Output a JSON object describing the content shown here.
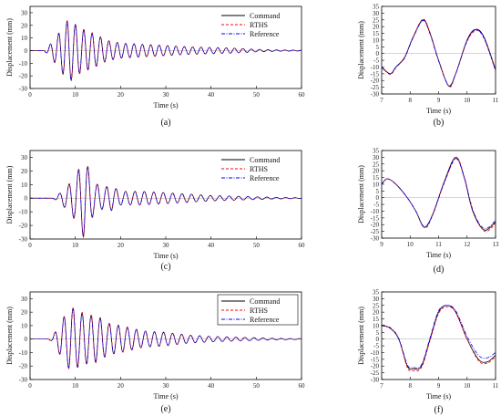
{
  "chart_data": [
    {
      "id": "a",
      "type": "line",
      "panel_label": "(a)",
      "xlabel": "Time (s)",
      "ylabel": "Displacement (mm)",
      "xlim": [
        0,
        60
      ],
      "ylim": [
        -30,
        35
      ],
      "xticks": [
        0,
        10,
        20,
        30,
        40,
        50,
        60
      ],
      "yticks": [
        -30,
        -20,
        -10,
        0,
        10,
        20,
        30
      ],
      "legend": {
        "placement": "top-right"
      },
      "wave": {
        "onset": 4.0,
        "freq": 0.54,
        "envelope": [
          [
            3,
            0
          ],
          [
            4,
            3
          ],
          [
            6,
            12
          ],
          [
            8.5,
            25
          ],
          [
            11,
            18
          ],
          [
            13,
            15
          ],
          [
            15,
            12
          ],
          [
            17,
            8
          ],
          [
            20,
            6
          ],
          [
            25,
            5
          ],
          [
            30,
            4
          ],
          [
            35,
            3
          ],
          [
            40,
            2.5
          ],
          [
            45,
            2
          ],
          [
            50,
            1
          ],
          [
            55,
            0.5
          ],
          [
            60,
            0.3
          ]
        ]
      },
      "series": [
        {
          "name": "Command",
          "color": "#000000",
          "style": "solid",
          "scale": 1.0,
          "lag": 0.0
        },
        {
          "name": "RTHS",
          "color": "#ff0000",
          "style": "dash",
          "scale": 1.02,
          "lag": 0.03
        },
        {
          "name": "Reference",
          "color": "#0000ff",
          "style": "dashdot",
          "scale": 0.97,
          "lag": -0.02
        }
      ]
    },
    {
      "id": "b",
      "type": "line",
      "panel_label": "(b)",
      "xlabel": "Time (s)",
      "ylabel": "Displacement (mm)",
      "xlim": [
        7,
        11
      ],
      "ylim": [
        -30,
        35
      ],
      "xticks": [
        7,
        8,
        9,
        10,
        11
      ],
      "yticks": [
        -30,
        -25,
        -20,
        -15,
        -10,
        -5,
        0,
        5,
        10,
        15,
        20,
        25,
        30,
        35
      ],
      "series": [
        {
          "name": "Command",
          "color": "#000000",
          "style": "solid",
          "points": [
            [
              7,
              -10
            ],
            [
              7.3,
              -15
            ],
            [
              7.5,
              -10
            ],
            [
              7.8,
              -3
            ],
            [
              8.1,
              12
            ],
            [
              8.45,
              25
            ],
            [
              8.7,
              15
            ],
            [
              9.0,
              -5
            ],
            [
              9.35,
              -24
            ],
            [
              9.6,
              -15
            ],
            [
              10.0,
              10
            ],
            [
              10.3,
              18
            ],
            [
              10.6,
              12
            ],
            [
              11,
              -12
            ]
          ]
        },
        {
          "name": "RTHS",
          "color": "#ff0000",
          "style": "dash",
          "points": [
            [
              7,
              -10
            ],
            [
              7.3,
              -15.5
            ],
            [
              7.5,
              -10.5
            ],
            [
              7.8,
              -3
            ],
            [
              8.1,
              12
            ],
            [
              8.45,
              25.5
            ],
            [
              8.7,
              15.5
            ],
            [
              9.0,
              -5
            ],
            [
              9.37,
              -24.5
            ],
            [
              9.6,
              -15
            ],
            [
              10.0,
              9
            ],
            [
              10.32,
              17
            ],
            [
              10.6,
              11
            ],
            [
              11,
              -13
            ]
          ]
        },
        {
          "name": "Reference",
          "color": "#0000ff",
          "style": "dashdot",
          "points": [
            [
              7,
              -10.5
            ],
            [
              7.3,
              -15
            ],
            [
              7.5,
              -10
            ],
            [
              7.8,
              -3.5
            ],
            [
              8.1,
              11.5
            ],
            [
              8.45,
              24.5
            ],
            [
              8.7,
              14.5
            ],
            [
              9.0,
              -5.5
            ],
            [
              9.35,
              -23.5
            ],
            [
              9.6,
              -15
            ],
            [
              10.0,
              9.5
            ],
            [
              10.3,
              17.5
            ],
            [
              10.6,
              11.5
            ],
            [
              11,
              -12.5
            ]
          ]
        }
      ]
    },
    {
      "id": "c",
      "type": "line",
      "panel_label": "(c)",
      "xlabel": "Time (s)",
      "ylabel": "Displacement (mm)",
      "xlim": [
        0,
        60
      ],
      "ylim": [
        -30,
        35
      ],
      "xticks": [
        0,
        10,
        20,
        30,
        40,
        50,
        60
      ],
      "yticks": [
        -30,
        -20,
        -10,
        0,
        10,
        20,
        30
      ],
      "legend": {
        "placement": "top-right"
      },
      "wave": {
        "onset": 6.0,
        "freq": 0.48,
        "envelope": [
          [
            5,
            0
          ],
          [
            6,
            2
          ],
          [
            8,
            8
          ],
          [
            10,
            16
          ],
          [
            12,
            30
          ],
          [
            14,
            12
          ],
          [
            16,
            8
          ],
          [
            18,
            9
          ],
          [
            20,
            5
          ],
          [
            25,
            5
          ],
          [
            30,
            4
          ],
          [
            35,
            3
          ],
          [
            40,
            2
          ],
          [
            45,
            1.5
          ],
          [
            50,
            1
          ],
          [
            55,
            0.5
          ],
          [
            60,
            0.3
          ]
        ]
      },
      "series": [
        {
          "name": "Command",
          "color": "#000000",
          "style": "solid",
          "scale": 1.0,
          "lag": 0.0
        },
        {
          "name": "RTHS",
          "color": "#ff0000",
          "style": "dash",
          "scale": 1.02,
          "lag": 0.03
        },
        {
          "name": "Reference",
          "color": "#0000ff",
          "style": "dashdot",
          "scale": 0.97,
          "lag": -0.02
        }
      ]
    },
    {
      "id": "d",
      "type": "line",
      "panel_label": "(d)",
      "xlabel": "Time (s)",
      "ylabel": "Displacement (mm)",
      "xlim": [
        9,
        13
      ],
      "ylim": [
        -30,
        35
      ],
      "xticks": [
        9,
        10,
        11,
        12,
        13
      ],
      "yticks": [
        -30,
        -25,
        -20,
        -15,
        -10,
        -5,
        0,
        5,
        10,
        15,
        20,
        25,
        30,
        35
      ],
      "series": [
        {
          "name": "Command",
          "color": "#000000",
          "style": "solid",
          "points": [
            [
              9,
              10
            ],
            [
              9.2,
              14
            ],
            [
              9.5,
              10
            ],
            [
              9.9,
              0
            ],
            [
              10.2,
              -10
            ],
            [
              10.5,
              -22
            ],
            [
              10.8,
              -12
            ],
            [
              11.2,
              12
            ],
            [
              11.6,
              30
            ],
            [
              11.9,
              15
            ],
            [
              12.2,
              -10
            ],
            [
              12.6,
              -24
            ],
            [
              13,
              -18
            ]
          ]
        },
        {
          "name": "RTHS",
          "color": "#ff0000",
          "style": "dash",
          "points": [
            [
              9,
              10
            ],
            [
              9.2,
              14
            ],
            [
              9.5,
              10
            ],
            [
              9.9,
              0
            ],
            [
              10.2,
              -10
            ],
            [
              10.52,
              -22.5
            ],
            [
              10.8,
              -12.5
            ],
            [
              11.2,
              11
            ],
            [
              11.62,
              29.5
            ],
            [
              11.9,
              15.5
            ],
            [
              12.22,
              -10
            ],
            [
              12.62,
              -25
            ],
            [
              13,
              -19
            ]
          ]
        },
        {
          "name": "Reference",
          "color": "#0000ff",
          "style": "dashdot",
          "points": [
            [
              9,
              10
            ],
            [
              9.2,
              14
            ],
            [
              9.5,
              10
            ],
            [
              9.9,
              0
            ],
            [
              10.2,
              -10
            ],
            [
              10.5,
              -21.5
            ],
            [
              10.8,
              -12
            ],
            [
              11.2,
              11.5
            ],
            [
              11.6,
              29
            ],
            [
              11.9,
              15
            ],
            [
              12.2,
              -9.5
            ],
            [
              12.6,
              -23
            ],
            [
              13,
              -17
            ]
          ]
        }
      ]
    },
    {
      "id": "e",
      "type": "line",
      "panel_label": "(e)",
      "xlabel": "Time (s)",
      "ylabel": "Displacement (mm)",
      "xlim": [
        0,
        60
      ],
      "ylim": [
        -30,
        35
      ],
      "xticks": [
        0,
        10,
        20,
        30,
        40,
        50,
        60
      ],
      "yticks": [
        -30,
        -20,
        -10,
        0,
        10,
        20,
        30
      ],
      "legend": {
        "placement": "top-right"
      },
      "wave": {
        "onset": 5.0,
        "freq": 0.5,
        "envelope": [
          [
            4,
            0
          ],
          [
            5,
            2
          ],
          [
            7,
            14
          ],
          [
            9,
            24
          ],
          [
            11,
            20
          ],
          [
            13,
            18
          ],
          [
            15,
            17
          ],
          [
            17,
            12
          ],
          [
            20,
            10
          ],
          [
            25,
            6
          ],
          [
            30,
            5
          ],
          [
            35,
            3
          ],
          [
            40,
            2
          ],
          [
            45,
            1.5
          ],
          [
            50,
            1
          ],
          [
            55,
            0.5
          ],
          [
            60,
            0.3
          ]
        ]
      },
      "series": [
        {
          "name": "Command",
          "color": "#000000",
          "style": "solid",
          "scale": 1.0,
          "lag": 0.0
        },
        {
          "name": "RTHS",
          "color": "#ff0000",
          "style": "dash",
          "scale": 1.02,
          "lag": 0.03
        },
        {
          "name": "Reference",
          "color": "#0000ff",
          "style": "dashdot",
          "scale": 0.97,
          "lag": -0.02
        }
      ]
    },
    {
      "id": "f",
      "type": "line",
      "panel_label": "(f)",
      "xlabel": "Time (s)",
      "ylabel": "Displacement (mm)",
      "xlim": [
        7,
        11
      ],
      "ylim": [
        -30,
        35
      ],
      "xticks": [
        7,
        8,
        9,
        10,
        11
      ],
      "yticks": [
        -30,
        -25,
        -20,
        -15,
        -10,
        -5,
        0,
        5,
        10,
        15,
        20,
        25,
        30,
        35
      ],
      "series": [
        {
          "name": "Command",
          "color": "#000000",
          "style": "solid",
          "points": [
            [
              7,
              10
            ],
            [
              7.3,
              8
            ],
            [
              7.6,
              0
            ],
            [
              7.9,
              -20
            ],
            [
              8.1,
              -22
            ],
            [
              8.4,
              -20
            ],
            [
              8.7,
              0
            ],
            [
              9.0,
              20
            ],
            [
              9.3,
              25
            ],
            [
              9.6,
              20
            ],
            [
              10.0,
              0
            ],
            [
              10.4,
              -15
            ],
            [
              10.7,
              -17
            ],
            [
              11,
              -12
            ]
          ]
        },
        {
          "name": "RTHS",
          "color": "#ff0000",
          "style": "dash",
          "points": [
            [
              7,
              10
            ],
            [
              7.3,
              8
            ],
            [
              7.6,
              0
            ],
            [
              7.9,
              -21
            ],
            [
              8.1,
              -23.5
            ],
            [
              8.4,
              -21
            ],
            [
              8.7,
              -1
            ],
            [
              9.0,
              19
            ],
            [
              9.3,
              24
            ],
            [
              9.6,
              20
            ],
            [
              10.0,
              0
            ],
            [
              10.4,
              -16
            ],
            [
              10.7,
              -18
            ],
            [
              11,
              -13
            ]
          ]
        },
        {
          "name": "Reference",
          "color": "#0000ff",
          "style": "dashdot",
          "points": [
            [
              7,
              10.5
            ],
            [
              7.3,
              8.5
            ],
            [
              7.6,
              0.5
            ],
            [
              7.9,
              -19
            ],
            [
              8.1,
              -21
            ],
            [
              8.4,
              -19
            ],
            [
              8.7,
              1
            ],
            [
              9.0,
              21
            ],
            [
              9.3,
              25
            ],
            [
              9.6,
              21
            ],
            [
              10.0,
              2
            ],
            [
              10.4,
              -12
            ],
            [
              10.7,
              -14
            ],
            [
              11,
              -10
            ]
          ]
        }
      ]
    }
  ]
}
